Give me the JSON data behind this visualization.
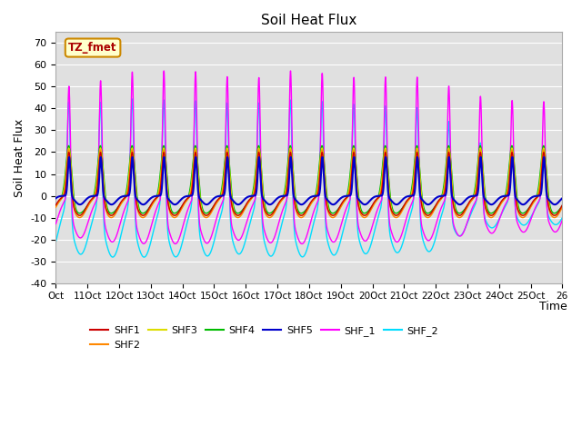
{
  "title": "Soil Heat Flux",
  "ylabel": "Soil Heat Flux",
  "xlabel": "Time",
  "ylim": [
    -40,
    75
  ],
  "xlim": [
    0,
    16
  ],
  "background_color": "#e0e0e0",
  "colors": {
    "SHF1": "#cc0000",
    "SHF2": "#ff8800",
    "SHF3": "#dddd00",
    "SHF4": "#00bb00",
    "SHF5": "#0000cc",
    "SHF_1": "#ff00ff",
    "SHF_2": "#00ddff"
  },
  "xtick_labels": [
    "Oct",
    "11Oct",
    "12Oct",
    "13Oct",
    "14Oct",
    "15Oct",
    "16Oct",
    "17Oct",
    "18Oct",
    "19Oct",
    "20Oct",
    "21Oct",
    "22Oct",
    "23Oct",
    "24Oct",
    "25Oct",
    "26"
  ],
  "xtick_positions": [
    0,
    1,
    2,
    3,
    4,
    5,
    6,
    7,
    8,
    9,
    10,
    11,
    12,
    13,
    14,
    15,
    16
  ],
  "ytick_positions": [
    -40,
    -30,
    -20,
    -10,
    0,
    10,
    20,
    30,
    40,
    50,
    60,
    70
  ],
  "legend_label": "TZ_fmet",
  "n_days": 16
}
